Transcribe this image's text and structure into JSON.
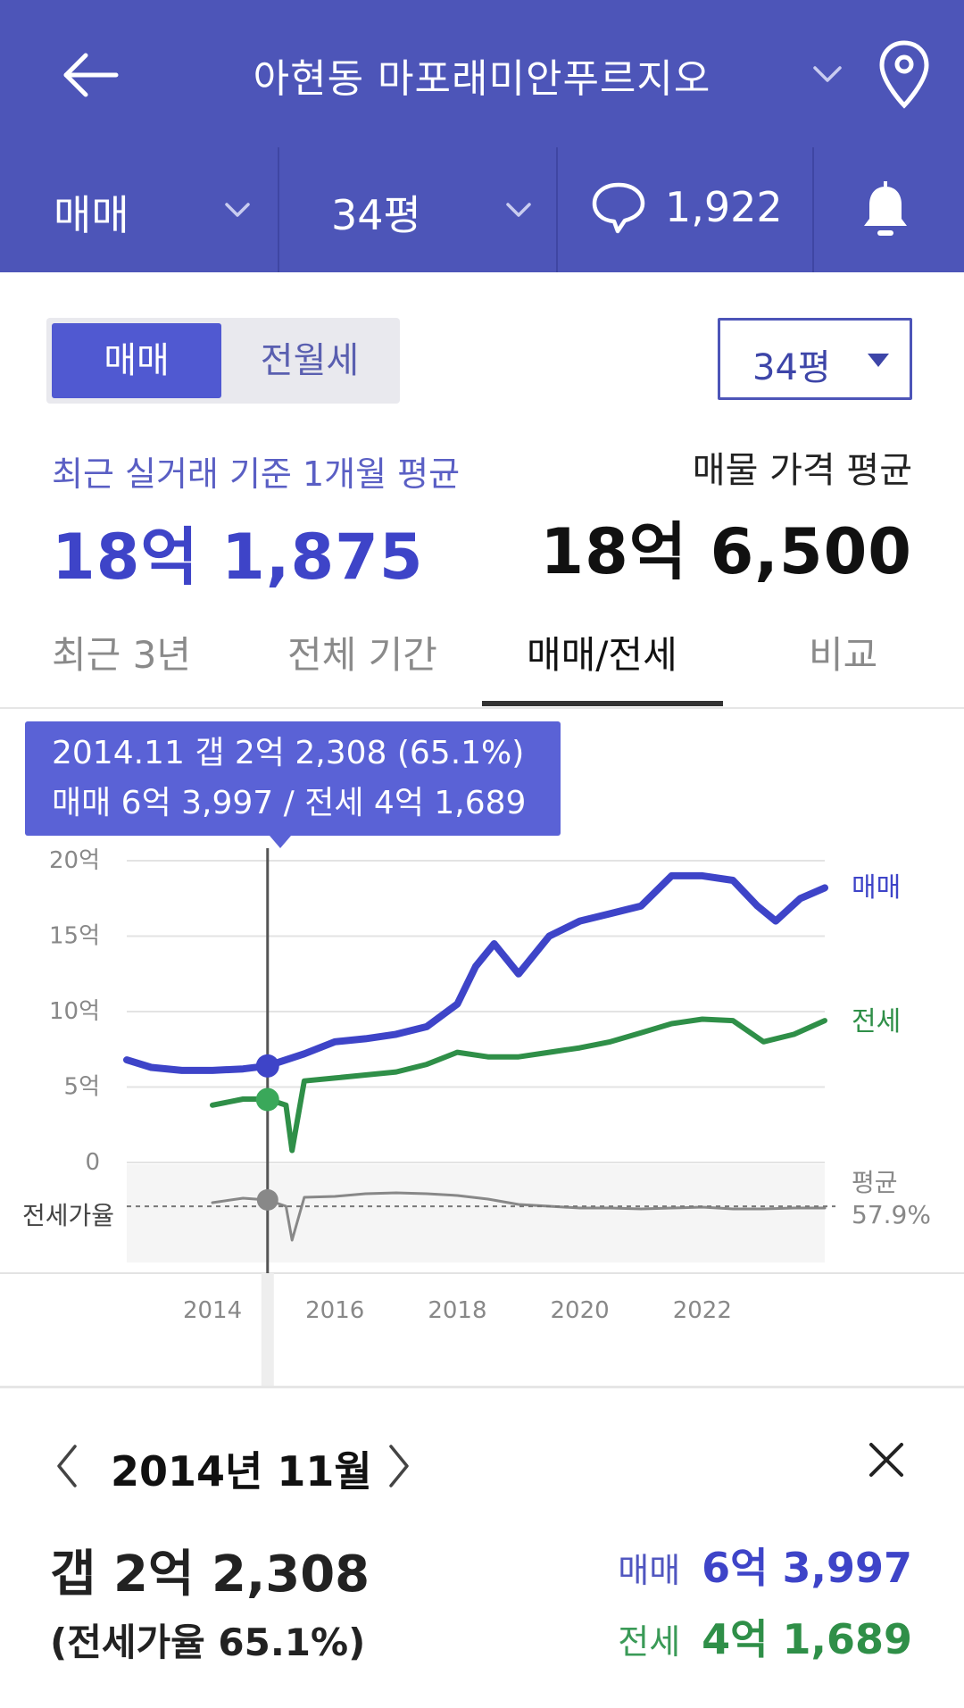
{
  "header": {
    "title": "아현동 마포래미안푸르지오",
    "icons": [
      "back-arrow-icon",
      "chevron-down-icon",
      "map-pin-icon"
    ]
  },
  "filters": {
    "deal_type": "매매",
    "area": "34평",
    "comment_count": "1,922"
  },
  "segment": {
    "active": "매매",
    "inactive": "전월세"
  },
  "size_select": "34평",
  "recent": {
    "label": "최근 실거래 기준 1개월 평균",
    "value": "18억 1,875"
  },
  "listing": {
    "label": "매물 가격 평균",
    "value": "18억 6,500"
  },
  "tabs": [
    {
      "label": "최근 3년"
    },
    {
      "label": "전체 기간"
    },
    {
      "label": "매매/전세",
      "active": true
    },
    {
      "label": "비교"
    }
  ],
  "tooltip": {
    "line1": "2014.11  갭 2억 2,308 (65.1%)",
    "line2": "매매 6억 3,997 / 전세 4억 1,689"
  },
  "colors": {
    "header": "#4d55b8",
    "sale": "#3e44c8",
    "jeonse": "#2f8f48",
    "ratio": "#888888"
  },
  "chart_data": {
    "type": "line",
    "y_ticks": [
      "20억",
      "15억",
      "10억",
      "5억",
      "0"
    ],
    "ylim": [
      0,
      20
    ],
    "x_ticks": [
      "2014",
      "2016",
      "2018",
      "2020",
      "2022"
    ],
    "ratio_label": "전세가율",
    "avg_label": "평균",
    "avg_value": "57.9%",
    "series": [
      {
        "name": "매매",
        "x": [
          2012.6,
          2013.0,
          2013.5,
          2014.0,
          2014.5,
          2014.9,
          2015.5,
          2016.0,
          2016.5,
          2017.0,
          2017.5,
          2018.0,
          2018.3,
          2018.6,
          2019.0,
          2019.5,
          2020.0,
          2020.5,
          2021.0,
          2021.5,
          2022.0,
          2022.5,
          2022.9,
          2023.2,
          2023.6,
          2024.0
        ],
        "values": [
          6.8,
          6.3,
          6.1,
          6.1,
          6.2,
          6.4,
          7.2,
          8.0,
          8.2,
          8.5,
          9.0,
          10.5,
          13.0,
          14.5,
          12.5,
          15.0,
          16.0,
          16.5,
          17.0,
          19.0,
          19.0,
          18.7,
          17.0,
          16.0,
          17.5,
          18.2
        ]
      },
      {
        "name": "전세",
        "x": [
          2014.0,
          2014.5,
          2014.9,
          2015.2,
          2015.3,
          2015.5,
          2016.0,
          2016.5,
          2017.0,
          2017.5,
          2018.0,
          2018.5,
          2019.0,
          2019.5,
          2020.0,
          2020.5,
          2021.0,
          2021.5,
          2022.0,
          2022.5,
          2023.0,
          2023.5,
          2024.0
        ],
        "values": [
          3.8,
          4.2,
          4.2,
          3.8,
          0.8,
          5.4,
          5.6,
          5.8,
          6.0,
          6.5,
          7.3,
          7.0,
          7.0,
          7.3,
          7.6,
          8.0,
          8.6,
          9.2,
          9.5,
          9.4,
          8.0,
          8.5,
          9.4
        ]
      },
      {
        "name": "전세가율",
        "x": [
          2014.0,
          2014.5,
          2014.9,
          2015.2,
          2015.3,
          2015.5,
          2016.0,
          2016.5,
          2017.0,
          2017.5,
          2018.0,
          2018.5,
          2019.0,
          2019.5,
          2020.0,
          2020.5,
          2021.0,
          2021.5,
          2022.0,
          2022.5,
          2023.0,
          2023.5,
          2024.0
        ],
        "values": [
          62,
          67,
          65,
          58,
          20,
          68,
          69,
          72,
          73,
          72,
          70,
          66,
          60,
          58,
          56,
          56,
          55,
          56,
          57,
          55,
          55,
          56,
          56
        ]
      }
    ],
    "selected": {
      "x": 2014.9,
      "sale": 6.4,
      "jeonse": 4.17,
      "ratio": 65.1
    }
  },
  "detail": {
    "month": "2014년 11월",
    "gap": "갭 2억 2,308",
    "ratio": "(전세가율 65.1%)",
    "sale_label": "매매",
    "sale_value": "6억 3,997",
    "jeonse_label": "전세",
    "jeonse_value": "4억 1,689"
  }
}
